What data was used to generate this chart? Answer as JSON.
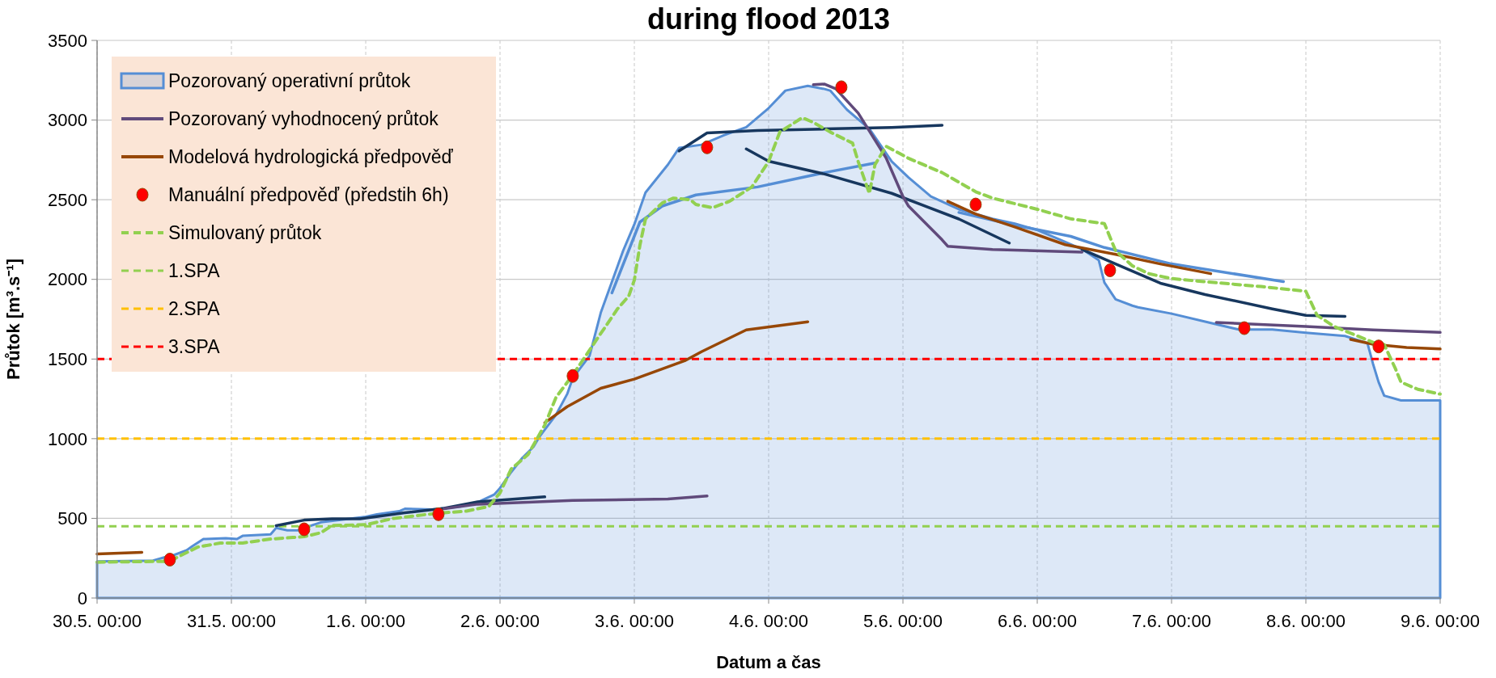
{
  "chart_data": {
    "type": "line",
    "title": "during flood 2013",
    "xlabel": "Datum a čas",
    "ylabel": "Průtok [m³.s⁻¹]",
    "xlim": [
      "2013-05-30T00:00",
      "2013-06-09T00:00"
    ],
    "ylim": [
      0,
      3500
    ],
    "xticks": [
      {
        "value": "2013-05-30T00:00",
        "label": "30.5. 00:00"
      },
      {
        "value": "2013-05-31T00:00",
        "label": "31.5. 00:00"
      },
      {
        "value": "2013-06-01T00:00",
        "label": "1.6. 00:00"
      },
      {
        "value": "2013-06-02T00:00",
        "label": "2.6. 00:00"
      },
      {
        "value": "2013-06-03T00:00",
        "label": "3.6. 00:00"
      },
      {
        "value": "2013-06-04T00:00",
        "label": "4.6. 00:00"
      },
      {
        "value": "2013-06-05T00:00",
        "label": "5.6. 00:00"
      },
      {
        "value": "2013-06-06T00:00",
        "label": "6.6. 00:00"
      },
      {
        "value": "2013-06-07T00:00",
        "label": "7.6. 00:00"
      },
      {
        "value": "2013-06-08T00:00",
        "label": "8.6. 00:00"
      },
      {
        "value": "2013-06-09T00:00",
        "label": "9.6. 00:00"
      }
    ],
    "yticks": [
      0,
      500,
      1000,
      1500,
      2000,
      2500,
      3000,
      3500
    ],
    "grid": true,
    "legend": "top left",
    "series": [
      {
        "type": "area",
        "name": "Pozorovaný operativní průtok",
        "color": "#558ed5",
        "x": [
          "2013-05-30T00:00",
          "2013-05-30T10:00",
          "2013-05-30T12:00",
          "2013-05-30T13:00",
          "2013-05-30T16:00",
          "2013-05-30T17:00",
          "2013-05-30T19:00",
          "2013-05-30T23:00",
          "2013-05-31T01:00",
          "2013-05-31T02:00",
          "2013-05-31T07:00",
          "2013-05-31T08:00",
          "2013-05-31T10:00",
          "2013-05-31T12:00",
          "2013-05-31T13:00",
          "2013-05-31T16:00",
          "2013-06-01T00:00",
          "2013-06-01T02:00",
          "2013-06-01T06:00",
          "2013-06-01T07:00",
          "2013-06-01T12:00",
          "2013-06-01T17:00",
          "2013-06-01T20:00",
          "2013-06-01T23:00",
          "2013-06-02T00:00",
          "2013-06-02T02:00",
          "2013-06-02T04:00",
          "2013-06-02T06:00",
          "2013-06-02T07:00",
          "2013-06-02T10:00",
          "2013-06-02T12:00",
          "2013-06-02T13:00",
          "2013-06-02T16:00",
          "2013-06-02T18:00",
          "2013-06-02T22:00",
          "2013-06-03T00:00",
          "2013-06-03T02:00",
          "2013-06-03T06:00",
          "2013-06-03T08:00",
          "2013-06-03T12:00",
          "2013-06-03T16:00",
          "2013-06-03T20:00",
          "2013-06-04T00:00",
          "2013-06-04T03:00",
          "2013-06-04T07:00",
          "2013-06-04T10:00",
          "2013-06-04T11:00",
          "2013-06-04T14:00",
          "2013-06-04T18:00",
          "2013-06-04T22:00",
          "2013-06-05T01:00",
          "2013-06-05T05:00",
          "2013-06-05T10:00",
          "2013-06-05T16:00",
          "2013-06-05T20:00",
          "2013-06-06T00:00",
          "2013-06-06T04:00",
          "2013-06-06T08:00",
          "2013-06-06T11:00",
          "2013-06-06T12:00",
          "2013-06-06T14:00",
          "2013-06-06T17:00",
          "2013-06-06T18:00",
          "2013-06-07T00:00",
          "2013-06-07T06:00",
          "2013-06-07T12:00",
          "2013-06-07T18:00",
          "2013-06-08T00:00",
          "2013-06-08T07:00",
          "2013-06-08T11:00",
          "2013-06-08T12:00",
          "2013-06-08T13:00",
          "2013-06-08T14:00",
          "2013-06-08T17:00",
          "2013-06-09T00:00"
        ],
        "values": [
          230,
          235,
          255,
          260,
          300,
          325,
          370,
          375,
          370,
          390,
          400,
          440,
          425,
          425,
          440,
          475,
          510,
          525,
          545,
          560,
          555,
          575,
          600,
          650,
          690,
          790,
          880,
          950,
          1010,
          1150,
          1280,
          1380,
          1520,
          1790,
          2180,
          2345,
          2545,
          2720,
          2825,
          2845,
          2905,
          2955,
          3075,
          3185,
          3215,
          3195,
          3185,
          3065,
          2945,
          2740,
          2640,
          2520,
          2440,
          2380,
          2350,
          2310,
          2250,
          2190,
          2120,
          1980,
          1875,
          1835,
          1825,
          1785,
          1735,
          1685,
          1685,
          1665,
          1645,
          1600,
          1470,
          1355,
          1270,
          1240,
          1240
        ]
      },
      {
        "color": "#558ed5",
        "x": [
          "2013-06-02T20:00",
          "2013-06-03T01:00",
          "2013-06-03T05:00",
          "2013-06-03T11:00",
          "2013-06-03T22:00",
          "2013-06-04T10:00",
          "2013-06-04T19:00",
          "2013-06-04T20:00",
          "2013-06-05T10:00",
          "2013-06-05T20:00",
          "2013-06-06T06:00",
          "2013-06-06T12:00",
          "2013-06-07T00:00",
          "2013-06-07T20:00"
        ],
        "values": [
          1915,
          2360,
          2460,
          2530,
          2580,
          2670,
          2730,
          null,
          2420,
          2340,
          2270,
          2200,
          2097,
          1986
        ]
      },
      {
        "color": "#17375e",
        "x": [
          "2013-05-31T08:00",
          "2013-05-31T13:00",
          "2013-05-31T18:00",
          "2013-05-31T23:00",
          "2013-06-01T07:00",
          "2013-06-01T14:00",
          "2013-06-01T20:00",
          "2013-06-02T08:00",
          "2013-06-02T09:00",
          "2013-06-03T08:00",
          "2013-06-03T13:00",
          "2013-06-03T22:00",
          "2013-06-04T10:00",
          "2013-06-04T22:00",
          "2013-06-05T07:00"
        ],
        "values": [
          454,
          489,
          497,
          497,
          535,
          563,
          604,
          635,
          null,
          2806,
          2919,
          2934,
          2944,
          2954,
          2968
        ]
      },
      {
        "color": "#17375e",
        "x": [
          "2013-06-03T20:00",
          "2013-06-04T00:00",
          "2013-06-04T10:00",
          "2013-06-04T22:00",
          "2013-06-05T10:00",
          "2013-06-05T19:00",
          "2013-06-05T20:00",
          "2013-06-06T08:00",
          "2013-06-06T14:00",
          "2013-06-06T22:00",
          "2013-06-07T06:00",
          "2013-06-07T18:00",
          "2013-06-08T00:00",
          "2013-06-08T07:00"
        ],
        "values": [
          2819,
          2742,
          2661,
          2540,
          2379,
          2228,
          null,
          2188,
          2097,
          1976,
          1905,
          1815,
          1774,
          1768
        ]
      },
      {
        "name": "Pozorovaný vyhodnocený průtok",
        "color": "#604a7b",
        "x": [
          "2013-06-01T14:00",
          "2013-06-01T20:00",
          "2013-06-02T13:00",
          "2013-06-03T06:00",
          "2013-06-03T13:00",
          "2013-06-03T14:00",
          "2013-06-04T08:00",
          "2013-06-04T10:00",
          "2013-06-04T12:00",
          "2013-06-04T16:00",
          "2013-06-04T21:00",
          "2013-06-05T00:00",
          "2013-06-05T01:00",
          "2013-06-05T07:00",
          "2013-06-05T08:00",
          "2013-06-05T16:00",
          "2013-06-06T08:00",
          "2013-06-06T09:00",
          "2013-06-07T08:00",
          "2013-06-08T00:00",
          "2013-06-08T12:00",
          "2013-06-09T00:00"
        ],
        "values": [
          560,
          589,
          612,
          621,
          641,
          null,
          3222,
          3226,
          3196,
          3044,
          2762,
          2520,
          2460,
          2248,
          2208,
          2188,
          2171,
          null,
          1730,
          1704,
          1683,
          1667
        ]
      },
      {
        "name": "Modelová hydrologická předpověď",
        "color": "#974706",
        "x": [
          "2013-05-30T00:00",
          "2013-05-30T08:00",
          "2013-05-30T09:00",
          "2013-06-02T08:00",
          "2013-06-02T12:00",
          "2013-06-02T18:00",
          "2013-06-03T00:00",
          "2013-06-03T09:00",
          "2013-06-03T12:00",
          "2013-06-03T20:00",
          "2013-06-04T07:00",
          "2013-06-04T08:00",
          "2013-06-05T08:00",
          "2013-06-05T13:00",
          "2013-06-05T20:00",
          "2013-06-06T05:00",
          "2013-06-06T14:00",
          "2013-06-06T22:00",
          "2013-06-07T07:00",
          "2013-06-07T08:00",
          "2013-06-08T08:00",
          "2013-06-08T12:00",
          "2013-06-08T18:00",
          "2013-06-09T00:00"
        ],
        "values": [
          276,
          287,
          null,
          1100,
          1201,
          1316,
          1374,
          1489,
          1546,
          1683,
          1734,
          null,
          2490,
          2410,
          2329,
          2218,
          2157,
          2097,
          2036,
          null,
          1623,
          1593,
          1573,
          1563
        ]
      },
      {
        "type": "scatter",
        "name": "Manuální předpověď (předstih 6h)",
        "color": "#ff0000",
        "marker": "circle",
        "x": [
          "2013-05-30T13:00",
          "2013-05-31T13:00",
          "2013-06-01T13:00",
          "2013-06-02T13:00",
          "2013-06-03T13:00",
          "2013-06-04T13:00",
          "2013-06-05T13:00",
          "2013-06-06T13:00",
          "2013-06-07T13:00",
          "2013-06-08T13:00"
        ],
        "values": [
          241,
          431,
          526,
          1394,
          2829,
          3206,
          2470,
          2057,
          1694,
          1579
        ]
      },
      {
        "name": "Simulovaný průtok",
        "color": "#92d050",
        "line_style": "dashed",
        "x": [
          "2013-05-30T00:00",
          "2013-05-30T12:00",
          "2013-05-30T14:00",
          "2013-05-30T18:00",
          "2013-05-30T22:00",
          "2013-05-31T02:00",
          "2013-05-31T07:00",
          "2013-05-31T11:00",
          "2013-05-31T13:00",
          "2013-05-31T16:00",
          "2013-05-31T18:00",
          "2013-06-01T00:00",
          "2013-06-01T05:00",
          "2013-06-01T11:00",
          "2013-06-01T14:00",
          "2013-06-01T18:00",
          "2013-06-01T22:00",
          "2013-06-02T00:00",
          "2013-06-02T02:00",
          "2013-06-02T05:00",
          "2013-06-02T08:00",
          "2013-06-02T10:00",
          "2013-06-02T13:00",
          "2013-06-02T18:00",
          "2013-06-02T21:00",
          "2013-06-02T23:00",
          "2013-06-03T00:00",
          "2013-06-03T01:00",
          "2013-06-03T02:00",
          "2013-06-03T05:00",
          "2013-06-03T07:00",
          "2013-06-03T10:00",
          "2013-06-03T11:00",
          "2013-06-03T14:00",
          "2013-06-03T17:00",
          "2013-06-03T21:00",
          "2013-06-04T00:00",
          "2013-06-04T02:00",
          "2013-06-04T06:00",
          "2013-06-04T08:00",
          "2013-06-04T11:00",
          "2013-06-04T15:00",
          "2013-06-04T16:00",
          "2013-06-04T18:00",
          "2013-06-04T19:00",
          "2013-06-04T21:00",
          "2013-06-05T01:00",
          "2013-06-05T07:00",
          "2013-06-05T13:00",
          "2013-06-05T16:00",
          "2013-06-06T00:00",
          "2013-06-06T06:00",
          "2013-06-06T12:00",
          "2013-06-06T14:00",
          "2013-06-06T17:00",
          "2013-06-06T20:00",
          "2013-06-07T00:00",
          "2013-06-07T06:00",
          "2013-06-07T16:00",
          "2013-06-08T00:00",
          "2013-06-08T02:00",
          "2013-06-08T05:00",
          "2013-06-08T12:00",
          "2013-06-08T14:00",
          "2013-06-08T16:00",
          "2013-06-08T17:00",
          "2013-06-08T20:00",
          "2013-06-09T00:00"
        ],
        "values": [
          225,
          230,
          250,
          320,
          345,
          345,
          370,
          380,
          385,
          410,
          455,
          460,
          500,
          525,
          535,
          545,
          575,
          660,
          810,
          900,
          1086,
          1259,
          1400,
          1660,
          1815,
          1895,
          1995,
          2215,
          2380,
          2480,
          2510,
          2500,
          2470,
          2450,
          2490,
          2580,
          2740,
          2925,
          3015,
          2985,
          2925,
          2855,
          2740,
          2540,
          2720,
          2835,
          2760,
          2670,
          2550,
          2510,
          2440,
          2380,
          2350,
          2180,
          2085,
          2035,
          2005,
          1985,
          1955,
          1925,
          1775,
          1705,
          1605,
          1590,
          1440,
          1355,
          1310,
          1280
        ]
      }
    ],
    "ref_lines": [
      {
        "axis": "y",
        "value": 450,
        "label": "1.SPA",
        "color": "#92d050",
        "line_style": "dashed"
      },
      {
        "axis": "y",
        "value": 1000,
        "label": "2.SPA",
        "color": "#ffc000",
        "line_style": "dashed"
      },
      {
        "axis": "y",
        "value": 1500,
        "label": "3.SPA",
        "color": "#ff0000",
        "line_style": "dashed"
      }
    ]
  }
}
